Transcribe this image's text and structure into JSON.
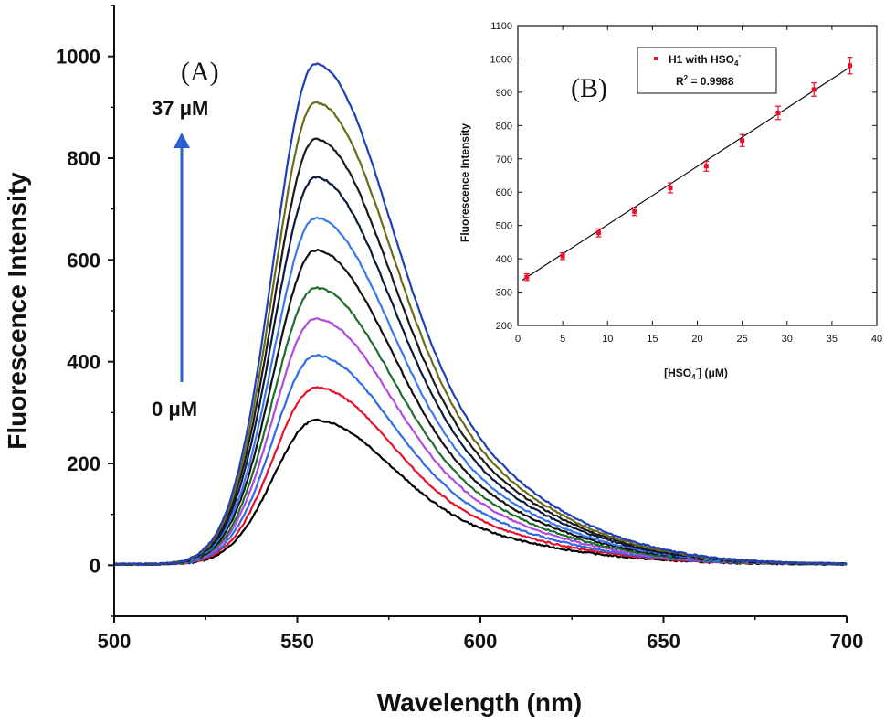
{
  "chart_data": [
    {
      "type": "line",
      "panel_label": "(A)",
      "xlabel": "Wavelength (nm)",
      "ylabel": "Fluorescence Intensity",
      "xlim": [
        500,
        700
      ],
      "ylim": [
        -100,
        1100
      ],
      "xticks": [
        "500",
        "550",
        "600",
        "650",
        "700"
      ],
      "yticks": [
        "0",
        "200",
        "400",
        "600",
        "800",
        "1000"
      ],
      "arrow_start_label": "0 μM",
      "arrow_end_label": "37 μM",
      "arrow_color": "#2a5fd0",
      "peak_wavelength": 555,
      "series": [
        {
          "color": "#000000",
          "peak": 283
        },
        {
          "color": "#e8102a",
          "peak": 347
        },
        {
          "color": "#2f6ae8",
          "peak": 410
        },
        {
          "color": "#b04ae0",
          "peak": 482
        },
        {
          "color": "#1f6f2a",
          "peak": 543
        },
        {
          "color": "#111111",
          "peak": 617
        },
        {
          "color": "#3a78f0",
          "peak": 680
        },
        {
          "color": "#0d1a40",
          "peak": 760
        },
        {
          "color": "#1a1a1a",
          "peak": 835
        },
        {
          "color": "#6b6b1a",
          "peak": 907
        },
        {
          "color": "#1f3fb8",
          "peak": 983
        }
      ]
    },
    {
      "type": "scatter",
      "panel_label": "(B)",
      "xlabel": "[HSO4-] (μM)",
      "xlabel_parts": {
        "pre": "[HSO",
        "sub": "4",
        "sup": "-",
        "post": "] (μM)"
      },
      "ylabel": "Fluorescence Intensity",
      "xlim": [
        0,
        40
      ],
      "ylim": [
        200,
        1100
      ],
      "xticks": [
        "0",
        "5",
        "10",
        "15",
        "20",
        "25",
        "30",
        "35",
        "40"
      ],
      "yticks": [
        "200",
        "300",
        "400",
        "500",
        "600",
        "700",
        "800",
        "900",
        "1000",
        "1100"
      ],
      "legend": {
        "series_name": "H1 with HSO4-",
        "series_name_parts": {
          "pre": "H1 with HSO",
          "sub": "4",
          "sup": "-"
        },
        "r2_text": "R2 = 0.9988",
        "r2_parts": {
          "pre": "R",
          "sup": "2",
          "post": " = 0.9988"
        }
      },
      "point_color": "#e8102a",
      "x": [
        1,
        5,
        9,
        13,
        17,
        21,
        25,
        29,
        33,
        37
      ],
      "y": [
        345,
        408,
        478,
        542,
        613,
        678,
        755,
        838,
        908,
        980
      ],
      "error": [
        10,
        10,
        12,
        12,
        15,
        15,
        18,
        20,
        20,
        25
      ],
      "fit_line": {
        "x": [
          0.5,
          37
        ],
        "y": [
          336,
          975
        ]
      }
    }
  ]
}
